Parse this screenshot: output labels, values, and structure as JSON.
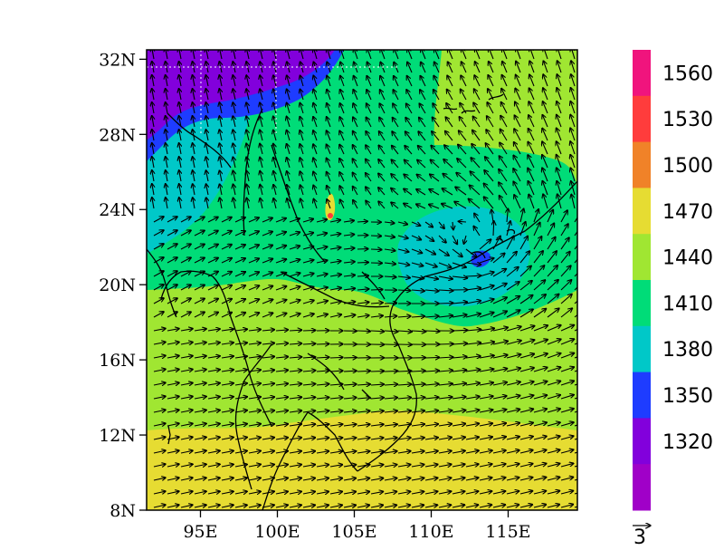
{
  "map": {
    "lat_ticks": [
      "32N",
      "28N",
      "24N",
      "20N",
      "16N",
      "12N",
      "8N"
    ],
    "lon_ticks": [
      "95E",
      "100E",
      "105E",
      "110E",
      "115E"
    ],
    "lat_range": [
      8,
      32.5
    ],
    "lon_range": [
      91.5,
      119.5
    ]
  },
  "colorbar": {
    "labels": [
      "1560",
      "1530",
      "1500",
      "1470",
      "1440",
      "1410",
      "1380",
      "1350",
      "1320"
    ],
    "colors": [
      "#f0147d",
      "#ff3c3c",
      "#f08228",
      "#e6dc32",
      "#a0e632",
      "#00dc78",
      "#00c8c8",
      "#1e3cff",
      "#8200dc",
      "#a000c8"
    ]
  },
  "vector_reference": {
    "label": "3"
  },
  "features": {
    "low_center": "cyclonic circulation near 22N 113E"
  }
}
